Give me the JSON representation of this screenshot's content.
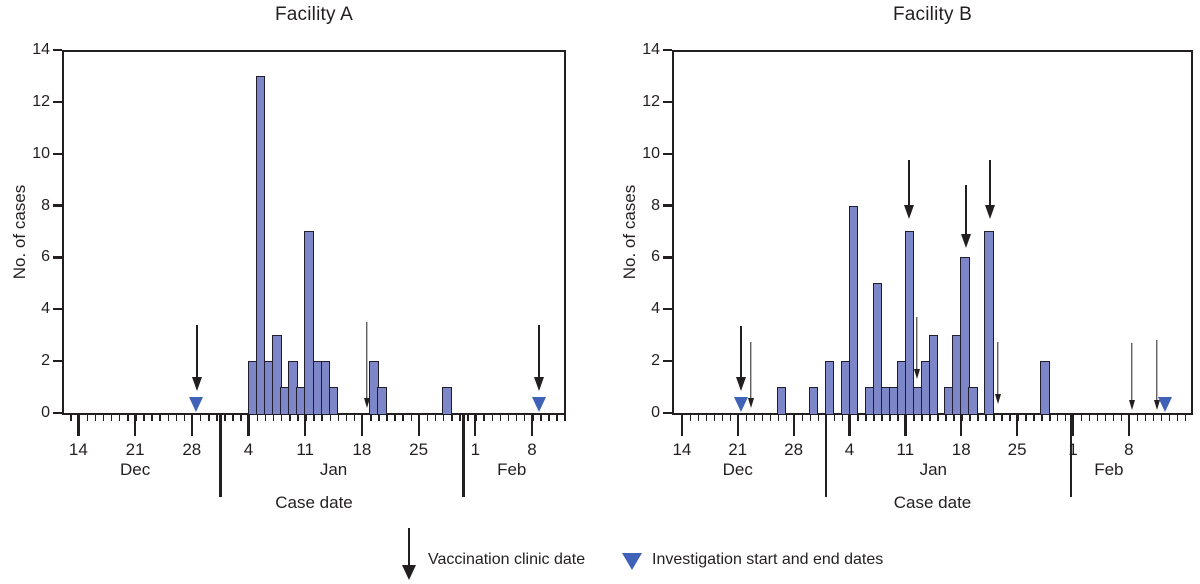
{
  "colors": {
    "ink": "#231f20",
    "bar_fill": "#7d87c8",
    "bar_border": "#201d2e",
    "triangle_blue": "#3f62b8",
    "background": "#ffffff"
  },
  "legend": {
    "vaccination_label": "Vaccination clinic date",
    "investigation_label": "Investigation start and end dates"
  },
  "chart_data": [
    {
      "type": "bar",
      "title": "Facility A",
      "xlabel": "Case date",
      "ylabel": "No. of cases",
      "ylim": [
        0,
        14
      ],
      "yticks": [
        0,
        2,
        4,
        6,
        8,
        10,
        12,
        14
      ],
      "x_week_ticks": [
        {
          "d": 14,
          "label": "14"
        },
        {
          "d": 21,
          "label": "21"
        },
        {
          "d": 28,
          "label": "28"
        },
        {
          "d": 35,
          "label": "4"
        },
        {
          "d": 42,
          "label": "11"
        },
        {
          "d": 49,
          "label": "18"
        },
        {
          "d": 56,
          "label": "25"
        },
        {
          "d": 63,
          "label": "1"
        },
        {
          "d": 70,
          "label": "8"
        }
      ],
      "months": [
        {
          "label": "Dec",
          "d": 21
        },
        {
          "label": "Jan",
          "d": 45.5
        },
        {
          "label": "Feb",
          "d": 67.5
        }
      ],
      "month_separators_d": [
        31.4,
        61.4
      ],
      "bars": [
        {
          "date": "Jan 4",
          "d": 35,
          "cases": 2
        },
        {
          "date": "Jan 5",
          "d": 36,
          "cases": 13
        },
        {
          "date": "Jan 6",
          "d": 37,
          "cases": 2
        },
        {
          "date": "Jan 7",
          "d": 38,
          "cases": 3
        },
        {
          "date": "Jan 8",
          "d": 39,
          "cases": 1
        },
        {
          "date": "Jan 9",
          "d": 40,
          "cases": 2
        },
        {
          "date": "Jan 10",
          "d": 41,
          "cases": 1
        },
        {
          "date": "Jan 11",
          "d": 42,
          "cases": 7
        },
        {
          "date": "Jan 12",
          "d": 43,
          "cases": 2
        },
        {
          "date": "Jan 13",
          "d": 44,
          "cases": 2
        },
        {
          "date": "Jan 14",
          "d": 45,
          "cases": 1
        },
        {
          "date": "Jan 19",
          "d": 50,
          "cases": 2
        },
        {
          "date": "Jan 20",
          "d": 51,
          "cases": 1
        },
        {
          "date": "Jan 28",
          "d": 59,
          "cases": 1
        }
      ],
      "vaccination_arrows": [
        {
          "date": "Dec 29",
          "d": 28.6,
          "style": "large",
          "from": 3.4,
          "to": 0.85
        },
        {
          "date": "Jan 19",
          "d": 49.63,
          "style": "small",
          "from": 3.5,
          "to": 0.2
        },
        {
          "date": "Feb 9",
          "d": 70.9,
          "style": "large",
          "from": 3.4,
          "to": 0.85
        }
      ],
      "investigation_triangles": [
        {
          "date": "Dec 29",
          "d": 28.6
        },
        {
          "date": "Feb 9",
          "d": 70.9
        }
      ]
    },
    {
      "type": "bar",
      "title": "Facility B",
      "xlabel": "Case date",
      "ylabel": "No. of cases",
      "ylim": [
        0,
        14
      ],
      "yticks": [
        0,
        2,
        4,
        6,
        8,
        10,
        12,
        14
      ],
      "x_week_ticks": [
        {
          "d": 14,
          "label": "14"
        },
        {
          "d": 21,
          "label": "21"
        },
        {
          "d": 28,
          "label": "28"
        },
        {
          "d": 35,
          "label": "4"
        },
        {
          "d": 42,
          "label": "11"
        },
        {
          "d": 49,
          "label": "18"
        },
        {
          "d": 56,
          "label": "25"
        },
        {
          "d": 63,
          "label": "1"
        },
        {
          "d": 70,
          "label": "8"
        }
      ],
      "months": [
        {
          "label": "Dec",
          "d": 21
        },
        {
          "label": "Jan",
          "d": 45.5
        },
        {
          "label": "Feb",
          "d": 67.5
        }
      ],
      "month_separators_d": [
        31.9,
        62.6
      ],
      "bars": [
        {
          "date": "Dec 26",
          "d": 26,
          "cases": 1
        },
        {
          "date": "Dec 30",
          "d": 30,
          "cases": 1
        },
        {
          "date": "Jan 1",
          "d": 32,
          "cases": 2
        },
        {
          "date": "Jan 3",
          "d": 34,
          "cases": 2
        },
        {
          "date": "Jan 4",
          "d": 35,
          "cases": 8
        },
        {
          "date": "Jan 6",
          "d": 37,
          "cases": 1
        },
        {
          "date": "Jan 7",
          "d": 38,
          "cases": 5
        },
        {
          "date": "Jan 8",
          "d": 39,
          "cases": 1
        },
        {
          "date": "Jan 9",
          "d": 40,
          "cases": 1
        },
        {
          "date": "Jan 10",
          "d": 41,
          "cases": 2
        },
        {
          "date": "Jan 11",
          "d": 42,
          "cases": 7
        },
        {
          "date": "Jan 12",
          "d": 43,
          "cases": 1
        },
        {
          "date": "Jan 13",
          "d": 44,
          "cases": 2
        },
        {
          "date": "Jan 14",
          "d": 45,
          "cases": 3
        },
        {
          "date": "Jan 16",
          "d": 47,
          "cases": 1
        },
        {
          "date": "Jan 17",
          "d": 48,
          "cases": 3
        },
        {
          "date": "Jan 18",
          "d": 49,
          "cases": 6
        },
        {
          "date": "Jan 19",
          "d": 50,
          "cases": 1
        },
        {
          "date": "Jan 21",
          "d": 52,
          "cases": 7
        },
        {
          "date": "Jan 28",
          "d": 59,
          "cases": 2
        }
      ],
      "vaccination_arrows": [
        {
          "date": "Dec 21",
          "d": 21.45,
          "style": "large",
          "from": 3.35,
          "to": 0.85
        },
        {
          "date": "Dec 22",
          "d": 22.65,
          "style": "small",
          "from": 2.75,
          "to": 0.2
        },
        {
          "date": "Jan 11",
          "d": 42.5,
          "style": "large",
          "from": 9.75,
          "to": 7.5
        },
        {
          "date": "Jan 12",
          "d": 43.45,
          "style": "small",
          "from": 3.72,
          "to": 1.3
        },
        {
          "date": "Jan 18",
          "d": 49.55,
          "style": "large",
          "from": 8.8,
          "to": 6.35
        },
        {
          "date": "Jan 21",
          "d": 52.6,
          "style": "large",
          "from": 9.75,
          "to": 7.5
        },
        {
          "date": "Jan 22",
          "d": 53.6,
          "style": "small",
          "from": 2.75,
          "to": 0.35
        },
        {
          "date": "Feb 8",
          "d": 70.4,
          "style": "small",
          "from": 2.7,
          "to": 0.12
        },
        {
          "date": "Feb 11",
          "d": 73.5,
          "style": "small",
          "from": 2.8,
          "to": 0.12
        }
      ],
      "investigation_triangles": [
        {
          "date": "Dec 21",
          "d": 21.45
        },
        {
          "date": "Feb 12",
          "d": 74.6
        }
      ]
    }
  ]
}
